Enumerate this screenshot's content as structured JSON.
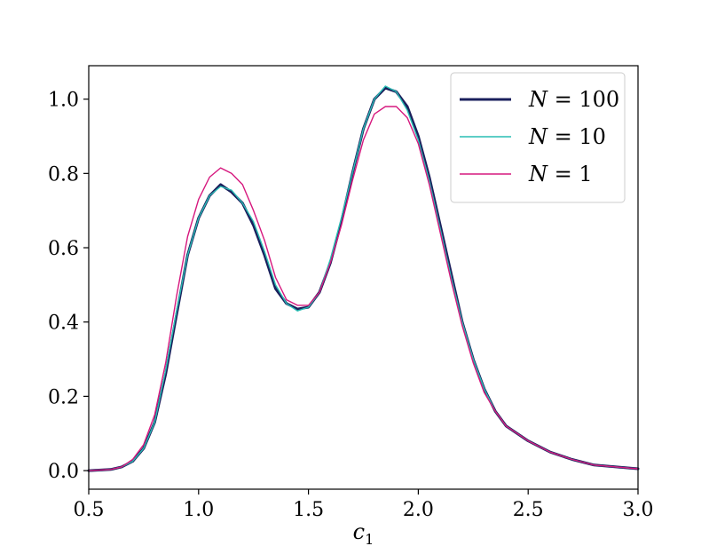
{
  "chart_data": {
    "type": "line",
    "title": "",
    "xlabel": "c",
    "xlabel_subscript": "1",
    "ylabel": "",
    "xlim": [
      0.5,
      3.0
    ],
    "ylim": [
      -0.05,
      1.09
    ],
    "grid": false,
    "legend_position": "top-right",
    "x_ticks": [
      0.5,
      1.0,
      1.5,
      2.0,
      2.5,
      3.0
    ],
    "x_tick_labels": [
      "0.5",
      "1.0",
      "1.5",
      "2.0",
      "2.5",
      "3.0"
    ],
    "y_ticks": [
      0.0,
      0.2,
      0.4,
      0.6,
      0.8,
      1.0
    ],
    "y_tick_labels": [
      "0.0",
      "0.2",
      "0.4",
      "0.6",
      "0.8",
      "1.0"
    ],
    "x": [
      0.5,
      0.6,
      0.65,
      0.7,
      0.75,
      0.8,
      0.85,
      0.9,
      0.95,
      1.0,
      1.05,
      1.1,
      1.15,
      1.2,
      1.25,
      1.3,
      1.35,
      1.4,
      1.45,
      1.5,
      1.55,
      1.6,
      1.65,
      1.7,
      1.75,
      1.8,
      1.85,
      1.9,
      1.95,
      2.0,
      2.05,
      2.1,
      2.15,
      2.2,
      2.25,
      2.3,
      2.35,
      2.4,
      2.45,
      2.5,
      2.6,
      2.7,
      2.8,
      2.9,
      3.0
    ],
    "series": [
      {
        "name": "N = 100",
        "legend_var": "N",
        "legend_value": "100",
        "color": "#1a1f5c",
        "line_width": 3.0,
        "values": [
          0.0,
          0.003,
          0.01,
          0.025,
          0.06,
          0.13,
          0.26,
          0.42,
          0.58,
          0.68,
          0.74,
          0.77,
          0.75,
          0.72,
          0.66,
          0.58,
          0.49,
          0.45,
          0.435,
          0.44,
          0.48,
          0.56,
          0.67,
          0.8,
          0.92,
          1.0,
          1.03,
          1.02,
          0.98,
          0.9,
          0.79,
          0.66,
          0.53,
          0.4,
          0.3,
          0.22,
          0.16,
          0.12,
          0.1,
          0.08,
          0.05,
          0.03,
          0.015,
          0.01,
          0.005
        ]
      },
      {
        "name": "N = 10",
        "legend_var": "N",
        "legend_value": "10",
        "color": "#29bdb4",
        "line_width": 1.4,
        "values": [
          0.0,
          0.003,
          0.01,
          0.025,
          0.06,
          0.13,
          0.27,
          0.43,
          0.58,
          0.68,
          0.74,
          0.765,
          0.755,
          0.72,
          0.67,
          0.59,
          0.5,
          0.45,
          0.43,
          0.44,
          0.48,
          0.57,
          0.68,
          0.8,
          0.92,
          1.0,
          1.035,
          1.02,
          0.97,
          0.89,
          0.78,
          0.65,
          0.52,
          0.4,
          0.3,
          0.22,
          0.16,
          0.12,
          0.1,
          0.08,
          0.05,
          0.03,
          0.015,
          0.01,
          0.005
        ]
      },
      {
        "name": "N = 1",
        "legend_var": "N",
        "legend_value": "1",
        "color": "#d6187e",
        "line_width": 1.4,
        "values": [
          0.0,
          0.003,
          0.01,
          0.03,
          0.07,
          0.15,
          0.29,
          0.47,
          0.63,
          0.73,
          0.79,
          0.815,
          0.8,
          0.77,
          0.7,
          0.62,
          0.52,
          0.46,
          0.445,
          0.445,
          0.48,
          0.56,
          0.66,
          0.78,
          0.89,
          0.96,
          0.98,
          0.98,
          0.95,
          0.88,
          0.77,
          0.64,
          0.51,
          0.39,
          0.29,
          0.21,
          0.16,
          0.12,
          0.1,
          0.08,
          0.05,
          0.03,
          0.015,
          0.01,
          0.005
        ]
      }
    ]
  }
}
